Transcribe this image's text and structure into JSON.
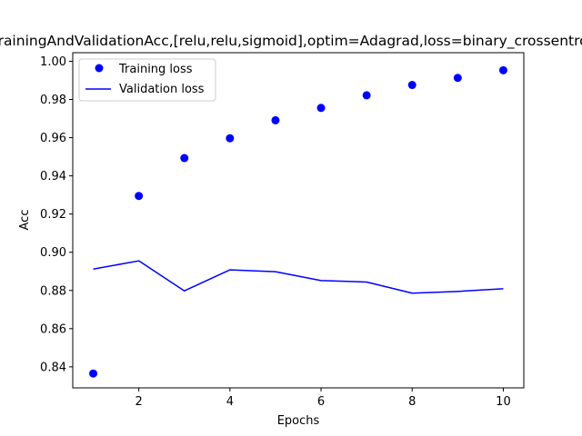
{
  "chart_data": {
    "type": "line",
    "title": "TrainingAndValidationAcc,[relu,relu,sigmoid],optim=Adagrad,loss=binary_crossentropy",
    "xlabel": "Epochs",
    "ylabel": "Acc",
    "xlim": [
      0.55,
      10.45
    ],
    "ylim": [
      0.829,
      1.0045
    ],
    "xticks": [
      2,
      4,
      6,
      8,
      10
    ],
    "xtick_labels": [
      "2",
      "4",
      "6",
      "8",
      "10"
    ],
    "yticks": [
      0.84,
      0.86,
      0.88,
      0.9,
      0.92,
      0.94,
      0.96,
      0.98,
      1.0
    ],
    "ytick_labels": [
      "0.84",
      "0.86",
      "0.88",
      "0.90",
      "0.92",
      "0.94",
      "0.96",
      "0.98",
      "1.00"
    ],
    "grid": false,
    "legend_position": "upper-left",
    "x": [
      1,
      2,
      3,
      4,
      5,
      6,
      7,
      8,
      9,
      10
    ],
    "series": [
      {
        "name": "Training loss",
        "style": "markers",
        "color": "#0000ff",
        "values": [
          0.8365,
          0.9295,
          0.9493,
          0.9597,
          0.9691,
          0.9756,
          0.9822,
          0.9876,
          0.9913,
          0.9953
        ]
      },
      {
        "name": "Validation loss",
        "style": "line",
        "color": "#0000ff",
        "values": [
          0.8912,
          0.8955,
          0.8798,
          0.8908,
          0.8898,
          0.8852,
          0.8844,
          0.8786,
          0.8795,
          0.8809
        ]
      }
    ]
  }
}
